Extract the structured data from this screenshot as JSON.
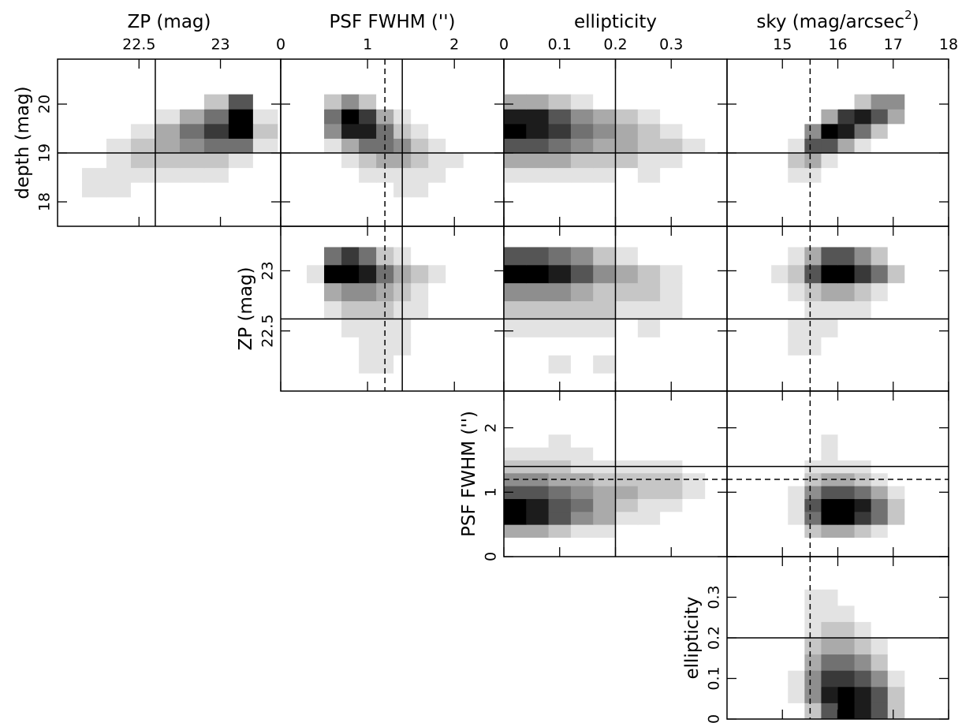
{
  "chart_data": {
    "type": "corner",
    "variables": [
      {
        "label": "depth (mag)",
        "lim": [
          17.5,
          20.92
        ],
        "ticks": [
          18,
          19,
          20
        ],
        "bins": [
          18.1,
          18.4,
          18.7,
          19.0,
          19.3,
          19.6,
          19.9,
          20.2
        ],
        "lines": [
          {
            "value": 19,
            "style": "solid"
          }
        ]
      },
      {
        "label": "ZP (mag)",
        "lim": [
          22.0,
          23.37
        ],
        "ticks": [
          22.5,
          23
        ],
        "bins": [
          22.0,
          22.15,
          22.3,
          22.45,
          22.6,
          22.75,
          22.9,
          23.05,
          23.2,
          23.35
        ],
        "lines": [
          {
            "value": 22.6,
            "style": "solid"
          }
        ]
      },
      {
        "label": "PSF FWHM ('')",
        "lim": [
          0,
          2.57
        ],
        "ticks": [
          0,
          1,
          2
        ],
        "bins": [
          0.3,
          0.5,
          0.7,
          0.9,
          1.1,
          1.3,
          1.5,
          1.7,
          1.9,
          2.1
        ],
        "lines": [
          {
            "value": 1.2,
            "style": "dashed"
          },
          {
            "value": 1.4,
            "style": "solid"
          }
        ]
      },
      {
        "label": "ellipticity",
        "lim": [
          0,
          0.4
        ],
        "ticks": [
          0,
          0.1,
          0.2,
          0.3
        ],
        "bins": [
          0,
          0.04,
          0.08,
          0.12,
          0.16,
          0.2,
          0.24,
          0.28,
          0.32,
          0.36
        ],
        "lines": [
          {
            "value": 0.2,
            "style": "solid"
          }
        ]
      },
      {
        "label": "sky (mag/arcsec",
        "label_superscript": "2",
        "label_suffix": ")",
        "lim": [
          14,
          18
        ],
        "ticks": [
          15,
          16,
          17,
          18
        ],
        "bins": [
          14.8,
          15.1,
          15.4,
          15.7,
          16.0,
          16.3,
          16.6,
          16.9,
          17.2
        ],
        "lines": [
          {
            "value": 15.5,
            "style": "dashed"
          }
        ]
      }
    ],
    "panels": [
      [
        {
          "counts": [
            [
              0,
              1,
              1,
              0,
              0,
              0,
              0,
              0,
              0
            ],
            [
              0,
              1,
              1,
              1,
              1,
              1,
              1,
              0,
              0
            ],
            [
              0,
              0,
              1,
              2,
              2,
              2,
              2,
              1,
              0
            ],
            [
              0,
              0,
              1,
              2,
              3,
              4,
              5,
              5,
              1
            ],
            [
              0,
              0,
              0,
              1,
              3,
              5,
              7,
              9,
              2
            ],
            [
              0,
              0,
              0,
              0,
              1,
              3,
              5,
              9,
              1
            ],
            [
              0,
              0,
              0,
              0,
              0,
              0,
              2,
              6,
              0
            ]
          ]
        },
        {
          "counts": [
            [
              0,
              0,
              0,
              0,
              0,
              1,
              1,
              0,
              0
            ],
            [
              0,
              0,
              0,
              1,
              1,
              1,
              1,
              1,
              0
            ],
            [
              0,
              0,
              1,
              2,
              3,
              3,
              2,
              1,
              1
            ],
            [
              0,
              1,
              3,
              5,
              5,
              4,
              2,
              1,
              0
            ],
            [
              0,
              4,
              8,
              8,
              5,
              2,
              1,
              0,
              0
            ],
            [
              0,
              5,
              9,
              7,
              3,
              1,
              0,
              0,
              0
            ],
            [
              0,
              2,
              4,
              2,
              0,
              0,
              0,
              0,
              0
            ]
          ]
        },
        {
          "counts": [
            [
              0,
              0,
              0,
              0,
              0,
              0,
              0,
              0,
              0
            ],
            [
              1,
              1,
              1,
              1,
              1,
              0,
              1,
              0,
              0
            ],
            [
              3,
              3,
              3,
              2,
              2,
              2,
              1,
              1,
              0
            ],
            [
              6,
              6,
              5,
              4,
              3,
              3,
              2,
              2,
              1
            ],
            [
              9,
              8,
              7,
              5,
              4,
              3,
              2,
              1,
              0
            ],
            [
              8,
              8,
              6,
              4,
              3,
              2,
              1,
              0,
              0
            ],
            [
              3,
              3,
              2,
              1,
              0,
              0,
              0,
              0,
              0
            ]
          ]
        },
        {
          "counts": [
            [
              0,
              0,
              0,
              0,
              0,
              0,
              0,
              0
            ],
            [
              0,
              1,
              1,
              0,
              0,
              0,
              0,
              0
            ],
            [
              0,
              2,
              3,
              1,
              0,
              0,
              0,
              0
            ],
            [
              0,
              1,
              6,
              6,
              3,
              1,
              0,
              0
            ],
            [
              0,
              0,
              4,
              9,
              8,
              5,
              2,
              0
            ],
            [
              0,
              0,
              0,
              3,
              7,
              8,
              6,
              3
            ],
            [
              0,
              0,
              0,
              0,
              0,
              2,
              4,
              4
            ]
          ]
        }
      ],
      [
        {
          "counts": [
            [
              0,
              0,
              0,
              0,
              0,
              0,
              0,
              0,
              0
            ],
            [
              0,
              0,
              0,
              1,
              1,
              0,
              0,
              0,
              0
            ],
            [
              0,
              0,
              0,
              1,
              1,
              1,
              0,
              0,
              0
            ],
            [
              0,
              0,
              1,
              1,
              1,
              1,
              0,
              0,
              0
            ],
            [
              0,
              1,
              2,
              2,
              2,
              1,
              1,
              0,
              0
            ],
            [
              0,
              3,
              4,
              4,
              3,
              2,
              1,
              0,
              0
            ],
            [
              1,
              9,
              9,
              8,
              5,
              3,
              2,
              1,
              0
            ],
            [
              0,
              5,
              7,
              5,
              2,
              1,
              0,
              0,
              0
            ],
            [
              0,
              0,
              0,
              0,
              0,
              0,
              0,
              0,
              0
            ]
          ]
        },
        {
          "counts": [
            [
              0,
              0,
              0,
              0,
              0,
              0,
              0,
              0,
              0
            ],
            [
              0,
              0,
              1,
              0,
              1,
              0,
              0,
              0,
              0
            ],
            [
              0,
              0,
              0,
              0,
              0,
              0,
              0,
              0,
              0
            ],
            [
              1,
              1,
              1,
              1,
              1,
              0,
              1,
              0,
              0
            ],
            [
              2,
              2,
              2,
              2,
              2,
              1,
              1,
              1,
              0
            ],
            [
              4,
              4,
              4,
              3,
              2,
              2,
              2,
              1,
              0
            ],
            [
              9,
              9,
              8,
              6,
              4,
              3,
              2,
              1,
              0
            ],
            [
              6,
              6,
              5,
              4,
              2,
              1,
              0,
              0,
              0
            ],
            [
              0,
              0,
              0,
              0,
              0,
              0,
              0,
              0,
              0
            ]
          ]
        },
        {
          "counts": [
            [
              0,
              0,
              0,
              0,
              0,
              0,
              0,
              0
            ],
            [
              0,
              0,
              0,
              0,
              0,
              0,
              0,
              0
            ],
            [
              0,
              1,
              1,
              0,
              0,
              0,
              0,
              0
            ],
            [
              0,
              1,
              1,
              1,
              0,
              0,
              0,
              0
            ],
            [
              0,
              0,
              1,
              1,
              1,
              1,
              0,
              0
            ],
            [
              0,
              1,
              2,
              3,
              3,
              2,
              1,
              0
            ],
            [
              1,
              2,
              6,
              9,
              9,
              7,
              5,
              2
            ],
            [
              0,
              1,
              3,
              6,
              6,
              4,
              2,
              0
            ],
            [
              0,
              0,
              0,
              0,
              0,
              0,
              0,
              0
            ]
          ]
        }
      ],
      [
        {
          "counts": [
            [
              3,
              3,
              2,
              1,
              1,
              0,
              0,
              0,
              0
            ],
            [
              9,
              8,
              6,
              4,
              3,
              1,
              1,
              0,
              0
            ],
            [
              9,
              8,
              6,
              5,
              3,
              2,
              1,
              1,
              0
            ],
            [
              6,
              6,
              5,
              4,
              3,
              3,
              2,
              2,
              1
            ],
            [
              4,
              4,
              3,
              3,
              2,
              2,
              2,
              2,
              1
            ],
            [
              2,
              2,
              2,
              1,
              1,
              1,
              1,
              1,
              0
            ],
            [
              1,
              1,
              1,
              1,
              0,
              0,
              0,
              0,
              0
            ],
            [
              0,
              0,
              1,
              0,
              0,
              0,
              0,
              0,
              0
            ],
            [
              0,
              0,
              0,
              0,
              0,
              0,
              0,
              0,
              0
            ]
          ]
        },
        {
          "counts": [
            [
              0,
              0,
              2,
              3,
              3,
              2,
              1,
              0
            ],
            [
              0,
              1,
              5,
              9,
              9,
              7,
              5,
              2
            ],
            [
              0,
              1,
              6,
              9,
              9,
              8,
              5,
              2
            ],
            [
              0,
              1,
              4,
              6,
              6,
              5,
              3,
              1
            ],
            [
              0,
              0,
              2,
              3,
              3,
              2,
              1,
              0
            ],
            [
              0,
              0,
              1,
              1,
              1,
              1,
              0,
              0
            ],
            [
              0,
              0,
              0,
              1,
              0,
              0,
              0,
              0
            ],
            [
              0,
              0,
              0,
              1,
              0,
              0,
              0,
              0
            ],
            [
              0,
              0,
              0,
              0,
              0,
              0,
              0,
              0
            ]
          ]
        }
      ],
      [
        {
          "counts": [
            [
              0,
              0,
              2,
              6,
              9,
              8,
              6,
              2
            ],
            [
              0,
              1,
              4,
              8,
              9,
              8,
              6,
              2
            ],
            [
              0,
              1,
              4,
              7,
              7,
              6,
              4,
              1
            ],
            [
              0,
              0,
              3,
              5,
              5,
              4,
              2,
              0
            ],
            [
              0,
              0,
              2,
              3,
              3,
              2,
              1,
              0
            ],
            [
              0,
              0,
              1,
              2,
              2,
              1,
              0,
              0
            ],
            [
              0,
              0,
              1,
              1,
              1,
              0,
              0,
              0
            ],
            [
              0,
              0,
              1,
              1,
              0,
              0,
              0,
              0
            ],
            [
              0,
              0,
              0,
              0,
              0,
              0,
              0,
              0
            ]
          ]
        }
      ]
    ]
  }
}
